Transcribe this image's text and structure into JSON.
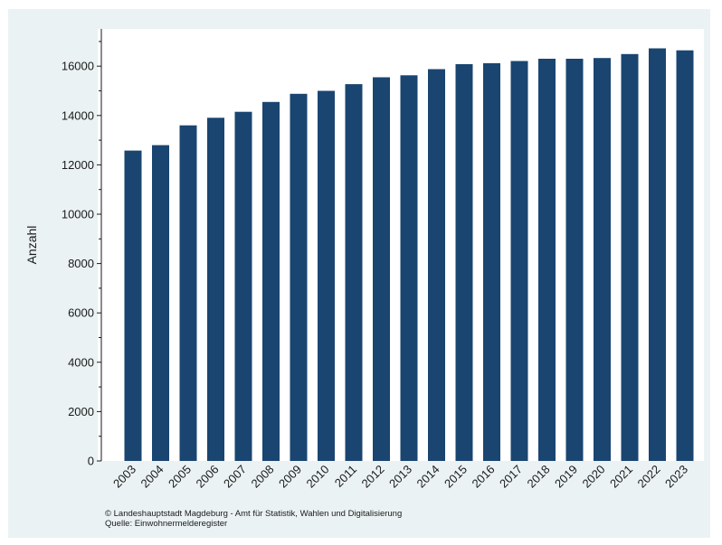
{
  "chart_data": {
    "type": "bar",
    "title": "",
    "ylabel": "Anzahl",
    "xlabel": "",
    "categories": [
      "2003",
      "2004",
      "2005",
      "2006",
      "2007",
      "2008",
      "2009",
      "2010",
      "2011",
      "2012",
      "2013",
      "2014",
      "2015",
      "2016",
      "2017",
      "2018",
      "2019",
      "2020",
      "2021",
      "2022",
      "2023"
    ],
    "values": [
      12580,
      12800,
      13600,
      13910,
      14150,
      14550,
      14880,
      15000,
      15270,
      15550,
      15630,
      15880,
      16080,
      16120,
      16210,
      16300,
      16300,
      16330,
      16490,
      16720,
      16640
    ],
    "ylim": [
      0,
      17000
    ],
    "yticks": [
      0,
      2000,
      4000,
      6000,
      8000,
      10000,
      12000,
      14000,
      16000
    ],
    "ytick_labels": [
      "0",
      "2000",
      "4000",
      "6000",
      "8000",
      "10000",
      "12000",
      "14000",
      "16000"
    ],
    "bar_color": "#1a4571",
    "grid": false
  },
  "footer": {
    "copyright": "©  Landeshauptstadt Magdeburg - Amt für Statistik, Wahlen und Digitalisierung",
    "source": "Quelle: Einwohnermelderegister"
  },
  "colors": {
    "panel_background": "#eaf2f3",
    "plot_background": "#ffffff",
    "bar": "#1a4571"
  }
}
